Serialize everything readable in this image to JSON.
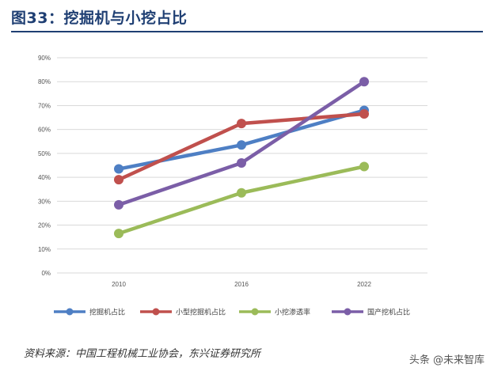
{
  "title": "图33：挖掘机与小挖占比",
  "source": "资料来源：中国工程机械工业协会，东兴证券研究所",
  "watermark": "头条 @未来智库",
  "chart_data": {
    "type": "line",
    "x": [
      "2010",
      "2016",
      "2022"
    ],
    "ylim": [
      0,
      90
    ],
    "yticks": [
      "0%",
      "10%",
      "20%",
      "30%",
      "40%",
      "50%",
      "60%",
      "70%",
      "80%",
      "90%"
    ],
    "grid": true,
    "legend": "bottom",
    "series": [
      {
        "name": "挖掘机占比",
        "color": "#4e7fc4",
        "values": [
          43.5,
          53.5,
          68
        ]
      },
      {
        "name": "小型挖掘机占比",
        "color": "#c0504d",
        "values": [
          39,
          62.5,
          66.5
        ]
      },
      {
        "name": "小挖渗透率",
        "color": "#9bbb59",
        "values": [
          16.5,
          33.5,
          44.5
        ]
      },
      {
        "name": "国产挖机占比",
        "color": "#7b5ea7",
        "values": [
          28.5,
          46,
          80
        ]
      }
    ]
  }
}
